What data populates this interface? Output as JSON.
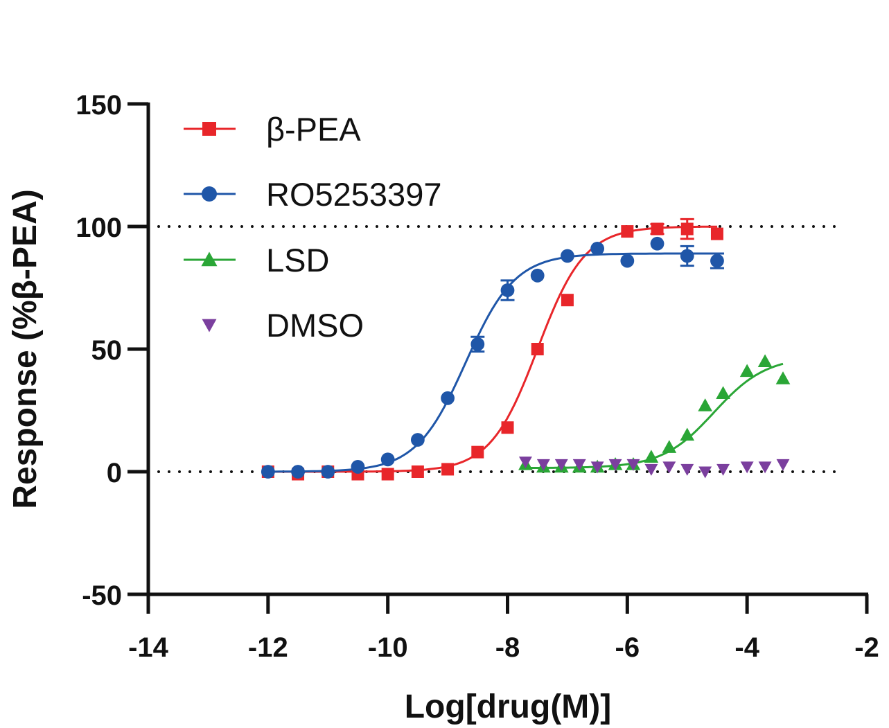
{
  "chart_data": {
    "type": "scatter",
    "title": "",
    "xlabel": "Log[drug(M)]",
    "ylabel": "Response (%β-PEA)",
    "xlim": [
      -14,
      -2
    ],
    "ylim": [
      -50,
      150
    ],
    "xticks": [
      -14,
      -12,
      -10,
      -8,
      -6,
      -4,
      -2
    ],
    "xtick_labels": [
      "-14",
      "-12",
      "-10",
      "-8",
      "-6",
      "-4",
      "-2"
    ],
    "yticks": [
      -50,
      0,
      50,
      100,
      150
    ],
    "ytick_labels": [
      "-50",
      "0",
      "50",
      "100",
      "150"
    ],
    "reference_lines": [
      0,
      100
    ],
    "legend_position": "top-left",
    "series": [
      {
        "name": "β-PEA",
        "color": "#e8262a",
        "marker": "square",
        "fit": {
          "bottom": 0,
          "top": 100,
          "logEC50": -7.5,
          "hill": 1.1,
          "x_range": [
            -12,
            -4.5
          ]
        },
        "x": [
          -12,
          -11.5,
          -11,
          -10.5,
          -10,
          -9.5,
          -9,
          -8.5,
          -8,
          -7.5,
          -7,
          -6,
          -5.5,
          -5,
          -4.5
        ],
        "y": [
          0,
          -1,
          0,
          -1,
          -1,
          0,
          1,
          8,
          18,
          50,
          70,
          98,
          99,
          99,
          97
        ],
        "err": [
          0,
          0,
          0,
          0,
          0,
          0,
          0,
          0,
          0,
          0,
          0,
          0,
          2,
          4,
          0
        ]
      },
      {
        "name": "RO5253397",
        "color": "#1f56a8",
        "marker": "circle",
        "fit": {
          "bottom": 0,
          "top": 89,
          "logEC50": -8.7,
          "hill": 1.05,
          "x_range": [
            -12,
            -4.5
          ]
        },
        "x": [
          -12,
          -11.5,
          -11,
          -10.5,
          -10,
          -9.5,
          -9,
          -8.5,
          -8,
          -7.5,
          -7,
          -6.5,
          -6,
          -5.5,
          -5,
          -4.5
        ],
        "y": [
          0,
          0,
          0,
          2,
          5,
          13,
          30,
          52,
          74,
          80,
          88,
          91,
          86,
          93,
          88,
          86
        ],
        "err": [
          0,
          0,
          0,
          0,
          0,
          0,
          0,
          3,
          4,
          0,
          0,
          0,
          0,
          0,
          4,
          3
        ]
      },
      {
        "name": "LSD",
        "color": "#2aa636",
        "marker": "triangle-up",
        "fit": {
          "bottom": 1.5,
          "top": 47,
          "logEC50": -4.55,
          "hill": 1.0,
          "x_range": [
            -7.7,
            -3.4
          ]
        },
        "x": [
          -7.7,
          -7.4,
          -7.1,
          -6.8,
          -6.5,
          -6.2,
          -5.9,
          -5.6,
          -5.3,
          -5.0,
          -4.7,
          -4.4,
          -4.0,
          -3.7,
          -3.4
        ],
        "y": [
          3,
          2,
          2,
          2,
          2,
          3,
          3,
          6,
          10,
          15,
          27,
          32,
          41,
          45,
          38
        ],
        "err": [
          0,
          0,
          0,
          0,
          0,
          0,
          0,
          0,
          0,
          0,
          0,
          0,
          0,
          0,
          0
        ]
      },
      {
        "name": "DMSO",
        "color": "#7b3f9e",
        "marker": "triangle-down",
        "fit": null,
        "x": [
          -7.7,
          -7.4,
          -7.1,
          -6.8,
          -6.5,
          -6.2,
          -5.9,
          -5.6,
          -5.3,
          -5.0,
          -4.7,
          -4.4,
          -4.0,
          -3.7,
          -3.4
        ],
        "y": [
          4,
          3,
          3,
          3,
          2,
          3,
          3,
          1,
          2,
          1,
          0,
          1,
          2,
          2,
          3
        ],
        "err": [
          0,
          0,
          0,
          0,
          0,
          0,
          0,
          0,
          0,
          0,
          0,
          0,
          0,
          0,
          0
        ]
      }
    ]
  }
}
